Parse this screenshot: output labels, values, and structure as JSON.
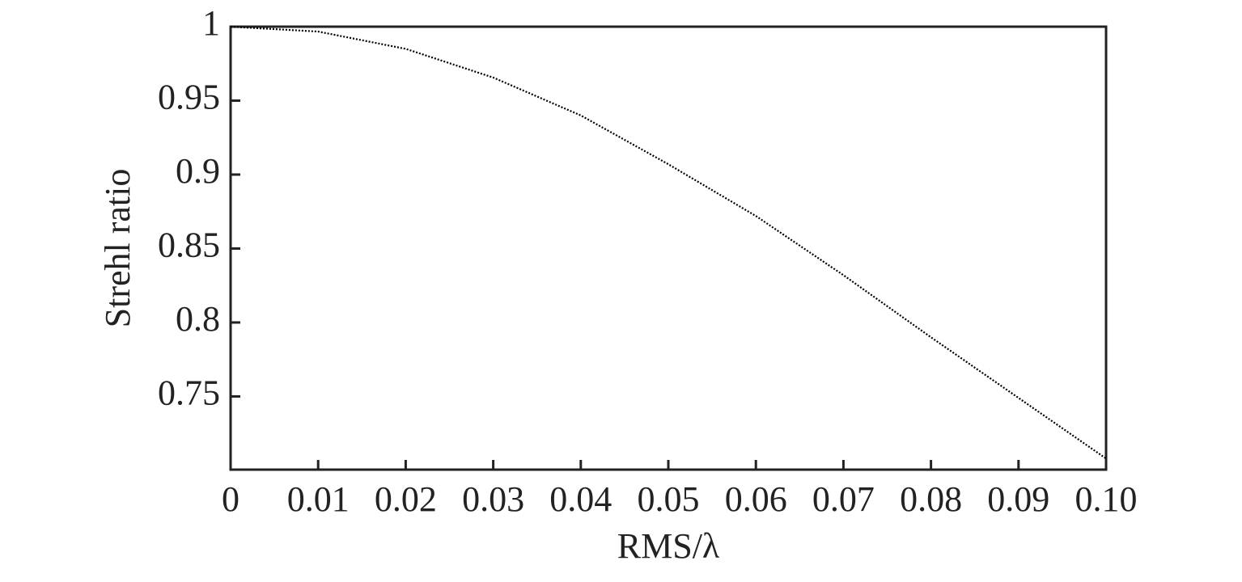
{
  "chart_data": {
    "type": "line",
    "x_label": "RMS/λ",
    "y_label": "Strehl ratio",
    "x": [
      0,
      0.01,
      0.02,
      0.03,
      0.04,
      0.05,
      0.06,
      0.07,
      0.08,
      0.09,
      0.1
    ],
    "series": [
      {
        "color": "#000000",
        "values": [
          1.0,
          0.9967,
          0.985,
          0.9656,
          0.94,
          0.907,
          0.872,
          0.832,
          0.79,
          0.749,
          0.708
        ]
      }
    ],
    "xlim": [
      0,
      0.1
    ],
    "ylim": [
      0.7005,
      1
    ],
    "xticks": [
      0,
      0.01,
      0.02,
      0.03,
      0.04,
      0.05,
      0.06,
      0.07,
      0.08,
      0.09,
      {
        "value": 0.1,
        "label": "0.10"
      }
    ],
    "yticks": [
      0.75,
      0.8,
      0.85,
      0.9,
      0.95,
      1
    ],
    "grid": false
  }
}
